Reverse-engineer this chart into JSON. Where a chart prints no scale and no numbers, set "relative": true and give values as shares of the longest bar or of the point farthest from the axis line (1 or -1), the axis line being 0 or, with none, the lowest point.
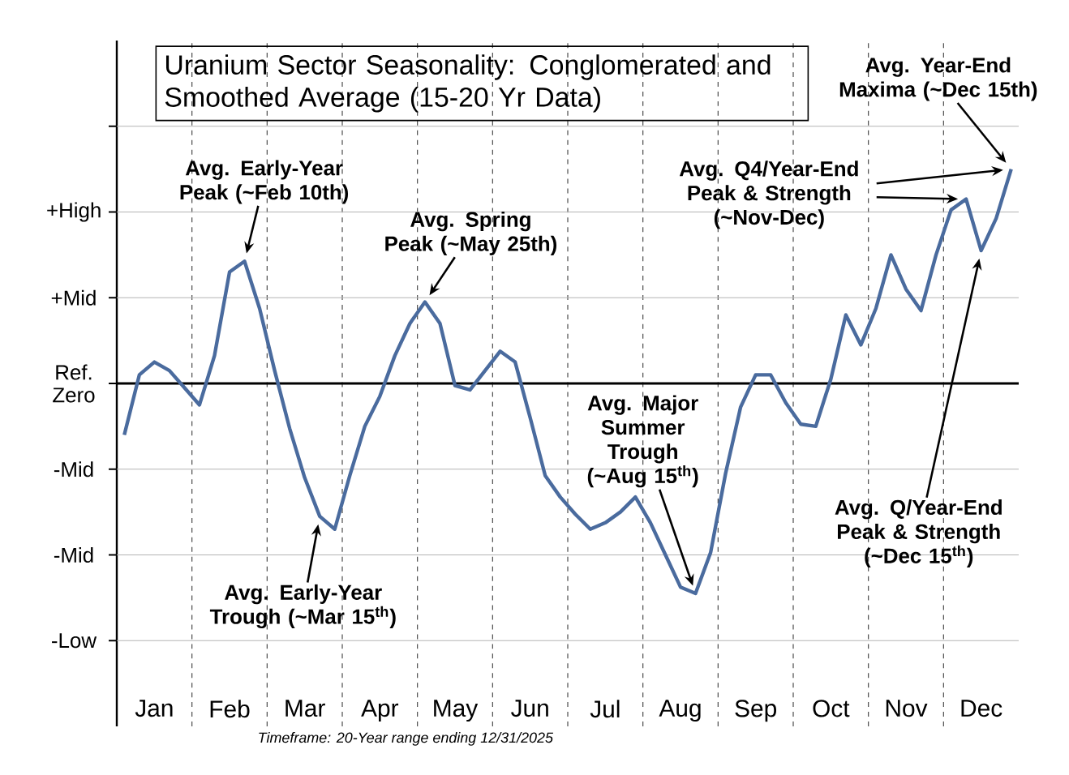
{
  "chart_data": {
    "type": "line",
    "title": "Uranium Sector Seasonality: Conglomerated and Smoothed Average (15-20 Yr Data)",
    "relative": true,
    "categories": [
      null,
      null,
      "Jan",
      null,
      null,
      null,
      null,
      "Feb",
      null,
      null,
      null,
      null,
      "Mar",
      null,
      null,
      null,
      null,
      "Apr",
      null,
      null,
      null,
      null,
      "May",
      null,
      null,
      null,
      null,
      "Jun",
      null,
      null,
      null,
      null,
      "Jul",
      null,
      null,
      null,
      null,
      "Aug",
      null,
      null,
      null,
      null,
      "Sep",
      null,
      null,
      null,
      null,
      "Oct",
      null,
      null,
      null,
      null,
      "Nov",
      null,
      null,
      null,
      null,
      "Dec",
      null,
      null
    ],
    "series": [
      {
        "color": "#4a6b9e",
        "values": [
          -0.24,
          0.04,
          0.1,
          0.06,
          -0.02,
          -0.1,
          0.13,
          0.52,
          0.57,
          0.35,
          0.06,
          -0.21,
          -0.44,
          -0.62,
          -0.68,
          -0.43,
          -0.2,
          -0.06,
          0.13,
          0.28,
          0.38,
          0.28,
          -0.01,
          -0.03,
          0.06,
          0.15,
          0.1,
          -0.16,
          -0.43,
          -0.53,
          -0.61,
          -0.68,
          -0.65,
          -0.6,
          -0.53,
          -0.65,
          -0.8,
          -0.95,
          -0.98,
          -0.79,
          -0.42,
          -0.11,
          0.04,
          0.04,
          -0.09,
          -0.19,
          -0.2,
          0.02,
          0.32,
          0.18,
          0.35,
          0.6,
          0.44,
          0.34,
          0.6,
          0.81,
          0.86,
          0.62,
          0.77,
          1.0
        ]
      }
    ],
    "grid": "x",
    "ref_lines": [
      {
        "axis": "y",
        "value": -1.2,
        "label": "-Low",
        "color": "#b3b3b3"
      },
      {
        "axis": "y",
        "value": -0.8,
        "label": "-Mid",
        "color": "#b3b3b3"
      },
      {
        "axis": "y",
        "value": -0.4,
        "label": "-Mid",
        "color": "#b3b3b3"
      },
      {
        "axis": "y",
        "value": 0,
        "label": "Ref. Zero",
        "color": "#000000"
      },
      {
        "axis": "y",
        "value": 0.4,
        "label": "+Mid",
        "color": "#b3b3b3"
      },
      {
        "axis": "y",
        "value": 0.8,
        "label": "+High",
        "color": "#b3b3b3"
      },
      {
        "axis": "y",
        "value": 1.2,
        "color": "#b3b3b3"
      }
    ],
    "annotations": [
      "Avg. Early-Year Peak (~Feb 10th)",
      "Avg. Spring Peak (~May 25th)",
      "Avg. Early-Year Trough (~Mar 15$^{th}$)",
      "Avg. Major Summer Trough (~Aug 15$^{th}$)",
      "Avg. Q4/Year-End Peak & Strength (~Nov-Dec)",
      "Avg. Year-End Maxima (~Dec 15th)",
      "Avg. Q/Year-End Peak & Strength (~Dec 15$^{th}$)",
      "Timeframe: 20-Year range ending 12/31/2025"
    ]
  }
}
